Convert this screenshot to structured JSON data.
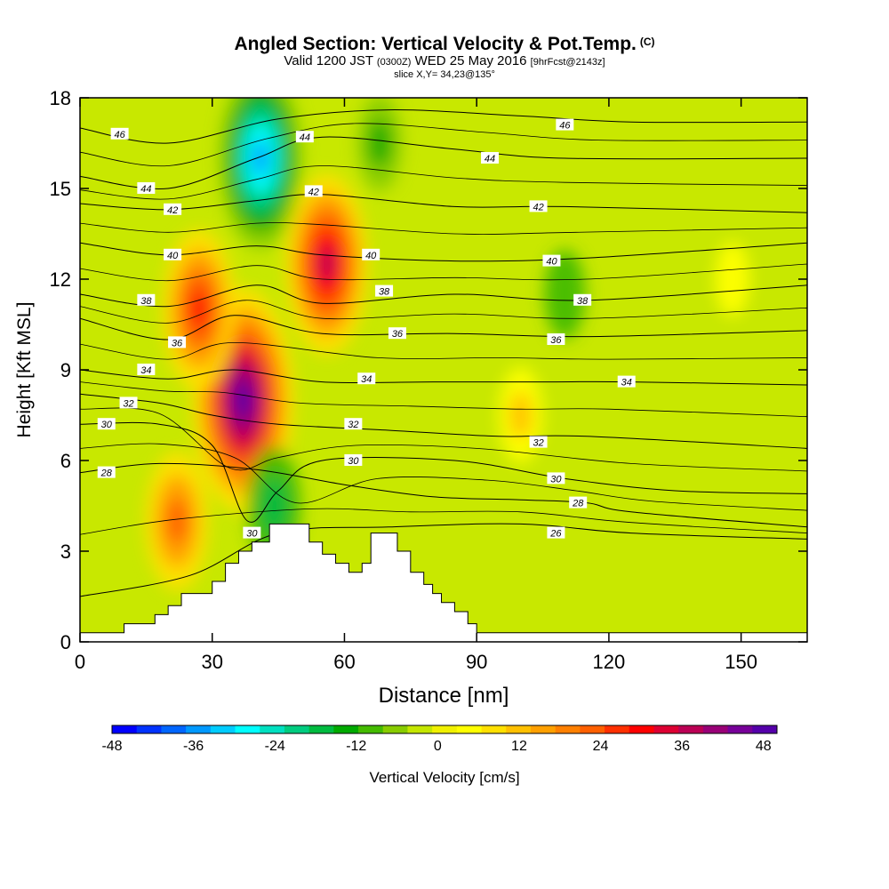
{
  "title": {
    "main": "Angled Section: Vertical Velocity & Pot.Temp.",
    "main_suffix": "(C)",
    "valid_a": "Valid 1200 JST",
    "valid_b": "(0300Z)",
    "valid_c": "WED 25 May 2016",
    "valid_d": "[9hrFcst@2143z]",
    "slice": "slice X,Y= 34,23@135°"
  },
  "chart_data": {
    "type": "heatmap",
    "xlabel": "Distance [nm]",
    "ylabel": "Height [Kft MSL]",
    "xlim": [
      0,
      165
    ],
    "ylim": [
      0,
      18
    ],
    "x_ticks": [
      0,
      30,
      60,
      90,
      120,
      150
    ],
    "y_ticks": [
      0,
      3,
      6,
      9,
      12,
      15,
      18
    ],
    "colorbar": {
      "label": "Vertical Velocity [cm/s]",
      "ticks": [
        -48,
        -36,
        -24,
        -12,
        0,
        12,
        24,
        36,
        48
      ],
      "range": [
        -48,
        50
      ],
      "colors": [
        "#0000ff",
        "#0033ff",
        "#0066ff",
        "#0099ff",
        "#00ccff",
        "#00ffff",
        "#00e0c0",
        "#00cc80",
        "#00bb40",
        "#00aa00",
        "#44bb00",
        "#88cc00",
        "#c4e600",
        "#f0f000",
        "#ffff00",
        "#ffe000",
        "#ffc000",
        "#ffa000",
        "#ff8000",
        "#ff6000",
        "#ff3000",
        "#ff0000",
        "#dd0033",
        "#bb0055",
        "#990077",
        "#770099",
        "#5500aa"
      ]
    },
    "vertical_velocity_features": [
      {
        "x": 37,
        "y": 8,
        "value": 48
      },
      {
        "x": 27,
        "y": 11,
        "value": 30
      },
      {
        "x": 22,
        "y": 4,
        "value": 24
      },
      {
        "x": 56,
        "y": 12.5,
        "value": 36
      },
      {
        "x": 41,
        "y": 16,
        "value": -36
      },
      {
        "x": 44,
        "y": 4.5,
        "value": -18
      },
      {
        "x": 68,
        "y": 16.5,
        "value": -12
      },
      {
        "x": 110,
        "y": 11.5,
        "value": -10
      },
      {
        "x": 148,
        "y": 12,
        "value": 6
      },
      {
        "x": 100,
        "y": 7.5,
        "value": 12
      }
    ],
    "terrain": [
      [
        0,
        0.3
      ],
      [
        10,
        0.3
      ],
      [
        10,
        0.6
      ],
      [
        17,
        0.6
      ],
      [
        17,
        0.9
      ],
      [
        20,
        0.9
      ],
      [
        20,
        1.2
      ],
      [
        23,
        1.2
      ],
      [
        23,
        1.6
      ],
      [
        30,
        1.6
      ],
      [
        30,
        2.0
      ],
      [
        33,
        2.0
      ],
      [
        33,
        2.6
      ],
      [
        36,
        2.6
      ],
      [
        36,
        3.0
      ],
      [
        39,
        3.0
      ],
      [
        39,
        3.3
      ],
      [
        43,
        3.3
      ],
      [
        43,
        3.9
      ],
      [
        52,
        3.9
      ],
      [
        52,
        3.3
      ],
      [
        55,
        3.3
      ],
      [
        55,
        2.9
      ],
      [
        58,
        2.9
      ],
      [
        58,
        2.6
      ],
      [
        61,
        2.6
      ],
      [
        61,
        2.3
      ],
      [
        64,
        2.3
      ],
      [
        64,
        2.6
      ],
      [
        66,
        2.6
      ],
      [
        66,
        3.6
      ],
      [
        72,
        3.6
      ],
      [
        72,
        3.0
      ],
      [
        75,
        3.0
      ],
      [
        75,
        2.3
      ],
      [
        78,
        2.3
      ],
      [
        78,
        1.9
      ],
      [
        80,
        1.9
      ],
      [
        80,
        1.6
      ],
      [
        82,
        1.6
      ],
      [
        82,
        1.3
      ],
      [
        85,
        1.3
      ],
      [
        85,
        1.0
      ],
      [
        88,
        1.0
      ],
      [
        88,
        0.6
      ],
      [
        90,
        0.6
      ],
      [
        90,
        0.3
      ],
      [
        165,
        0.3
      ]
    ],
    "theta_contours": [
      {
        "label": "26",
        "points": [
          [
            0,
            1.5
          ],
          [
            25,
            2.2
          ],
          [
            45,
            3.6
          ],
          [
            70,
            3.8
          ],
          [
            100,
            3.9
          ],
          [
            125,
            3.6
          ],
          [
            165,
            3.4
          ]
        ],
        "labels_at": [
          [
            108,
            3.6
          ]
        ]
      },
      {
        "label": "28",
        "points": [
          [
            0,
            5.6
          ],
          [
            18,
            5.9
          ],
          [
            40,
            5.7
          ],
          [
            60,
            5.2
          ],
          [
            80,
            4.8
          ],
          [
            100,
            4.7
          ],
          [
            115,
            4.6
          ],
          [
            125,
            4.3
          ],
          [
            165,
            3.8
          ]
        ],
        "labels_at": [
          [
            6,
            5.6
          ],
          [
            113,
            4.6
          ]
        ]
      },
      {
        "label": "30",
        "points": [
          [
            0,
            7.2
          ],
          [
            18,
            7.2
          ],
          [
            30,
            6.5
          ],
          [
            38,
            4.0
          ],
          [
            45,
            5.0
          ],
          [
            55,
            6.0
          ],
          [
            85,
            6.0
          ],
          [
            110,
            5.4
          ],
          [
            135,
            5.0
          ],
          [
            165,
            4.9
          ]
        ],
        "labels_at": [
          [
            6,
            7.2
          ],
          [
            39,
            3.6
          ],
          [
            62,
            6.0
          ],
          [
            108,
            5.4
          ]
        ]
      },
      {
        "label": "32",
        "points": [
          [
            0,
            8.2
          ],
          [
            18,
            7.9
          ],
          [
            30,
            7.5
          ],
          [
            45,
            7.2
          ],
          [
            70,
            7.0
          ],
          [
            95,
            6.8
          ],
          [
            115,
            6.8
          ],
          [
            165,
            6.4
          ]
        ],
        "labels_at": [
          [
            11,
            7.9
          ],
          [
            62,
            7.2
          ],
          [
            104,
            6.6
          ]
        ]
      },
      {
        "label": "34",
        "points": [
          [
            0,
            9.0
          ],
          [
            20,
            8.7
          ],
          [
            35,
            9.0
          ],
          [
            55,
            8.6
          ],
          [
            80,
            8.6
          ],
          [
            105,
            8.6
          ],
          [
            125,
            8.6
          ],
          [
            165,
            8.5
          ]
        ],
        "labels_at": [
          [
            15,
            9.0
          ],
          [
            65,
            8.7
          ],
          [
            124,
            8.6
          ]
        ]
      },
      {
        "label": "36",
        "points": [
          [
            0,
            10.7
          ],
          [
            20,
            10.0
          ],
          [
            35,
            10.8
          ],
          [
            55,
            10.2
          ],
          [
            85,
            10.2
          ],
          [
            115,
            10.1
          ],
          [
            165,
            10.3
          ]
        ],
        "labels_at": [
          [
            22,
            9.9
          ],
          [
            72,
            10.2
          ],
          [
            108,
            10.0
          ]
        ]
      },
      {
        "label": "38",
        "points": [
          [
            0,
            11.5
          ],
          [
            20,
            11.1
          ],
          [
            40,
            11.8
          ],
          [
            55,
            11.2
          ],
          [
            85,
            11.5
          ],
          [
            115,
            11.3
          ],
          [
            165,
            11.8
          ]
        ],
        "labels_at": [
          [
            15,
            11.3
          ],
          [
            69,
            11.6
          ],
          [
            114,
            11.3
          ]
        ]
      },
      {
        "label": "40",
        "points": [
          [
            0,
            13.2
          ],
          [
            20,
            12.8
          ],
          [
            40,
            13.1
          ],
          [
            55,
            12.8
          ],
          [
            85,
            12.6
          ],
          [
            115,
            12.7
          ],
          [
            165,
            13.2
          ]
        ],
        "labels_at": [
          [
            21,
            12.8
          ],
          [
            66,
            12.8
          ],
          [
            107,
            12.6
          ]
        ]
      },
      {
        "label": "42",
        "points": [
          [
            0,
            14.5
          ],
          [
            20,
            14.3
          ],
          [
            40,
            14.6
          ],
          [
            55,
            14.8
          ],
          [
            85,
            14.4
          ],
          [
            110,
            14.4
          ],
          [
            165,
            14.2
          ]
        ],
        "labels_at": [
          [
            21,
            14.3
          ],
          [
            53,
            14.9
          ],
          [
            104,
            14.4
          ]
        ]
      },
      {
        "label": "44",
        "points": [
          [
            0,
            15.4
          ],
          [
            20,
            15.0
          ],
          [
            40,
            16.0
          ],
          [
            55,
            16.7
          ],
          [
            85,
            16.3
          ],
          [
            110,
            16.0
          ],
          [
            165,
            16.0
          ]
        ],
        "labels_at": [
          [
            15,
            15.0
          ],
          [
            51,
            16.7
          ],
          [
            93,
            16.0
          ]
        ]
      },
      {
        "label": "46",
        "points": [
          [
            0,
            17.0
          ],
          [
            20,
            16.5
          ],
          [
            45,
            17.3
          ],
          [
            70,
            17.6
          ],
          [
            100,
            17.4
          ],
          [
            125,
            17.2
          ],
          [
            165,
            17.2
          ]
        ],
        "labels_at": [
          [
            9,
            16.8
          ],
          [
            110,
            17.1
          ]
        ]
      }
    ]
  }
}
